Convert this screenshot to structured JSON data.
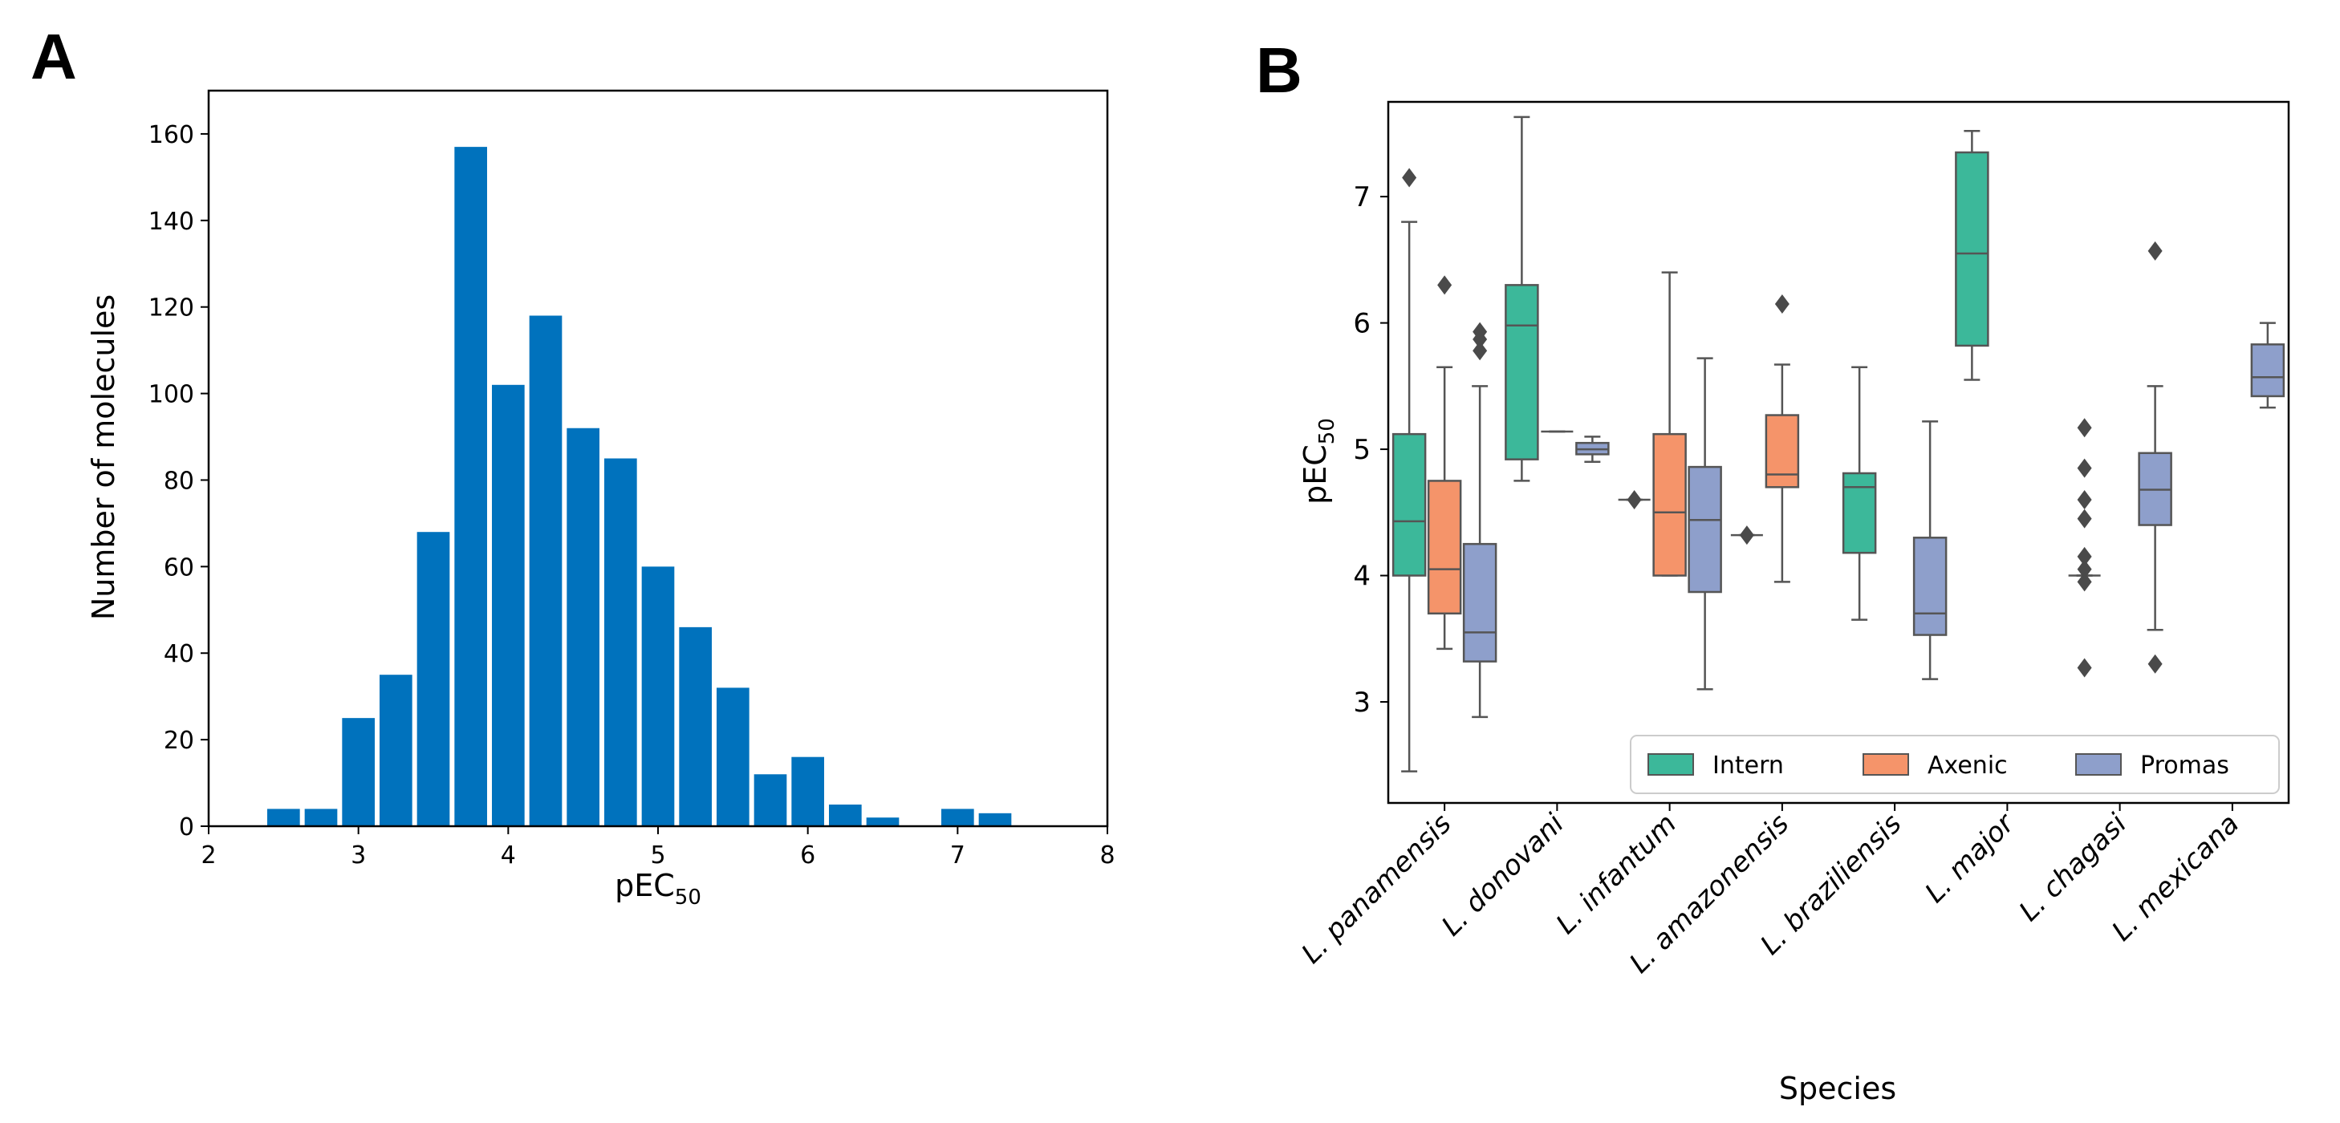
{
  "panels": {
    "a_label": "A",
    "b_label": "B"
  },
  "chart_data": [
    {
      "type": "bar",
      "panel": "A",
      "xlabel": "pEC",
      "xlabel_sub": "50",
      "ylabel": "Number of molecules",
      "xlim": [
        2,
        8
      ],
      "ylim": [
        0,
        170
      ],
      "xticks": [
        2,
        3,
        4,
        5,
        6,
        7,
        8
      ],
      "yticks": [
        0,
        20,
        40,
        60,
        80,
        100,
        120,
        140,
        160
      ],
      "bin_width": 0.25,
      "bar_color": "#0072BD",
      "bins": [
        {
          "x": 2.5,
          "value": 4
        },
        {
          "x": 2.75,
          "value": 4
        },
        {
          "x": 3.0,
          "value": 25
        },
        {
          "x": 3.25,
          "value": 35
        },
        {
          "x": 3.5,
          "value": 68
        },
        {
          "x": 3.75,
          "value": 157
        },
        {
          "x": 4.0,
          "value": 102
        },
        {
          "x": 4.25,
          "value": 118
        },
        {
          "x": 4.5,
          "value": 92
        },
        {
          "x": 4.75,
          "value": 85
        },
        {
          "x": 5.0,
          "value": 60
        },
        {
          "x": 5.25,
          "value": 46
        },
        {
          "x": 5.5,
          "value": 32
        },
        {
          "x": 5.75,
          "value": 12
        },
        {
          "x": 6.0,
          "value": 16
        },
        {
          "x": 6.25,
          "value": 5
        },
        {
          "x": 6.5,
          "value": 2
        },
        {
          "x": 7.0,
          "value": 4
        },
        {
          "x": 7.25,
          "value": 3
        }
      ]
    },
    {
      "type": "box",
      "panel": "B",
      "xlabel": "Species",
      "ylabel": "pEC",
      "ylabel_sub": "50",
      "ylim": [
        2.2,
        7.75
      ],
      "yticks": [
        3,
        4,
        5,
        6,
        7
      ],
      "categories": [
        "L. panamensis",
        "L. donovani",
        "L. infantum",
        "L. amazonensis",
        "L. braziliensis",
        "L. major",
        "L. chagasi",
        "L. mexicana"
      ],
      "series": [
        {
          "name": "Intern",
          "color": "#3CB89A"
        },
        {
          "name": "Axenic",
          "color": "#F5946A"
        },
        {
          "name": "Promas",
          "color": "#8E9FCB"
        }
      ],
      "legend_position": "lower-right",
      "boxes": [
        {
          "category": 0,
          "series": 0,
          "whislo": 2.45,
          "q1": 4.0,
          "med": 4.43,
          "q3": 5.12,
          "whishi": 6.8,
          "fliers": [
            7.15
          ]
        },
        {
          "category": 0,
          "series": 1,
          "whislo": 3.42,
          "q1": 3.7,
          "med": 4.05,
          "q3": 4.75,
          "whishi": 5.65,
          "fliers": [
            6.3
          ]
        },
        {
          "category": 0,
          "series": 2,
          "whislo": 2.88,
          "q1": 3.32,
          "med": 3.55,
          "q3": 4.25,
          "whishi": 5.5,
          "fliers": [
            5.78,
            5.87,
            5.93
          ]
        },
        {
          "category": 1,
          "series": 0,
          "whislo": 4.75,
          "q1": 4.92,
          "med": 5.98,
          "q3": 6.3,
          "whishi": 7.63,
          "fliers": []
        },
        {
          "category": 1,
          "series": 1,
          "whislo": 5.14,
          "q1": 5.14,
          "med": 5.14,
          "q3": 5.14,
          "whishi": 5.14,
          "fliers": []
        },
        {
          "category": 1,
          "series": 2,
          "whislo": 4.9,
          "q1": 4.96,
          "med": 5.0,
          "q3": 5.05,
          "whishi": 5.1,
          "fliers": []
        },
        {
          "category": 2,
          "series": 0,
          "whislo": 4.6,
          "q1": 4.6,
          "med": 4.6,
          "q3": 4.6,
          "whishi": 4.6,
          "fliers": [
            4.6
          ]
        },
        {
          "category": 2,
          "series": 1,
          "whislo": 4.0,
          "q1": 4.0,
          "med": 4.5,
          "q3": 5.12,
          "whishi": 6.4,
          "fliers": []
        },
        {
          "category": 2,
          "series": 2,
          "whislo": 3.1,
          "q1": 3.87,
          "med": 4.44,
          "q3": 4.86,
          "whishi": 5.72,
          "fliers": []
        },
        {
          "category": 3,
          "series": 0,
          "whislo": 4.32,
          "q1": 4.32,
          "med": 4.32,
          "q3": 4.32,
          "whishi": 4.32,
          "fliers": [
            4.32
          ]
        },
        {
          "category": 3,
          "series": 1,
          "whislo": 3.95,
          "q1": 4.7,
          "med": 4.8,
          "q3": 5.27,
          "whishi": 5.67,
          "fliers": [
            6.15
          ]
        },
        {
          "category": 4,
          "series": 0,
          "whislo": 3.65,
          "q1": 4.18,
          "med": 4.7,
          "q3": 4.81,
          "whishi": 5.65,
          "fliers": []
        },
        {
          "category": 4,
          "series": 2,
          "whislo": 3.18,
          "q1": 3.53,
          "med": 3.7,
          "q3": 4.3,
          "whishi": 5.22,
          "fliers": []
        },
        {
          "category": 5,
          "series": 0,
          "whislo": 5.55,
          "q1": 5.82,
          "med": 6.55,
          "q3": 7.35,
          "whishi": 7.52,
          "fliers": []
        },
        {
          "category": 6,
          "series": 0,
          "whislo": 4.0,
          "q1": 4.0,
          "med": 4.0,
          "q3": 4.0,
          "whishi": 4.0,
          "fliers": [
            3.27,
            3.95,
            4.05,
            4.15,
            4.45,
            4.6,
            4.85,
            5.17
          ]
        },
        {
          "category": 6,
          "series": 2,
          "whislo": 3.57,
          "q1": 4.4,
          "med": 4.68,
          "q3": 4.97,
          "whishi": 5.5,
          "fliers": [
            3.3,
            6.57
          ]
        },
        {
          "category": 7,
          "series": 2,
          "whislo": 5.33,
          "q1": 5.42,
          "med": 5.57,
          "q3": 5.83,
          "whishi": 6.0,
          "fliers": []
        }
      ]
    }
  ]
}
